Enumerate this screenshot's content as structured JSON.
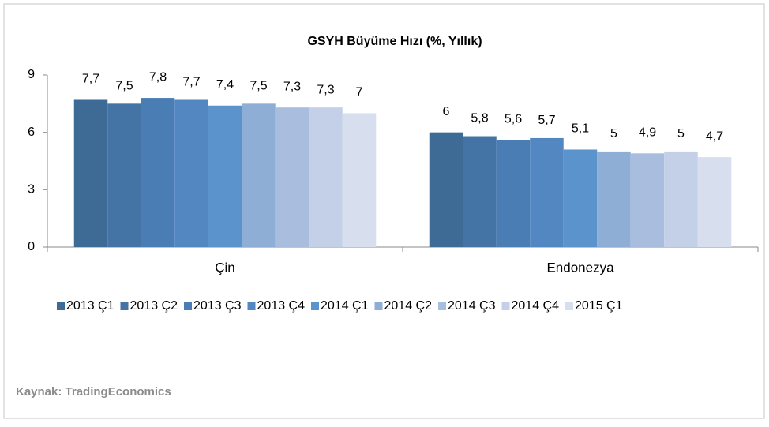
{
  "chart_data": {
    "type": "bar",
    "title": "GSYH Büyüme Hızı (%, Yıllık)",
    "categories": [
      "Çin",
      "Endonezya"
    ],
    "ylim": [
      0,
      9
    ],
    "yticks": [
      0,
      3,
      6,
      9
    ],
    "legend": "bottom",
    "series": [
      {
        "name": "2013 Ç1",
        "color": "#3e6a96",
        "values": [
          7.7,
          6
        ],
        "value_labels": [
          "7,7",
          "6"
        ]
      },
      {
        "name": "2013 Ç2",
        "color": "#4473a6",
        "values": [
          7.5,
          5.8
        ],
        "value_labels": [
          "7,5",
          "5,8"
        ]
      },
      {
        "name": "2013 Ç3",
        "color": "#4b7db5",
        "values": [
          7.8,
          5.6
        ],
        "value_labels": [
          "7,8",
          "5,6"
        ]
      },
      {
        "name": "2013 Ç4",
        "color": "#5387c2",
        "values": [
          7.7,
          5.7
        ],
        "value_labels": [
          "7,7",
          "5,7"
        ]
      },
      {
        "name": "2014 Ç1",
        "color": "#5b93cc",
        "values": [
          7.4,
          5.1
        ],
        "value_labels": [
          "7,4",
          "5,1"
        ]
      },
      {
        "name": "2014 Ç2",
        "color": "#8eaed6",
        "values": [
          7.5,
          5
        ],
        "value_labels": [
          "7,5",
          "5"
        ]
      },
      {
        "name": "2014 Ç3",
        "color": "#a9bedf",
        "values": [
          7.3,
          4.9
        ],
        "value_labels": [
          "7,3",
          "4,9"
        ]
      },
      {
        "name": "2014 Ç4",
        "color": "#c4d0e7",
        "values": [
          7.3,
          5
        ],
        "value_labels": [
          "7,3",
          "5"
        ]
      },
      {
        "name": "2015 Ç1",
        "color": "#d7deee",
        "values": [
          7,
          4.7
        ],
        "value_labels": [
          "7",
          "4,7"
        ]
      }
    ],
    "source": "Kaynak: TradingEconomics"
  }
}
